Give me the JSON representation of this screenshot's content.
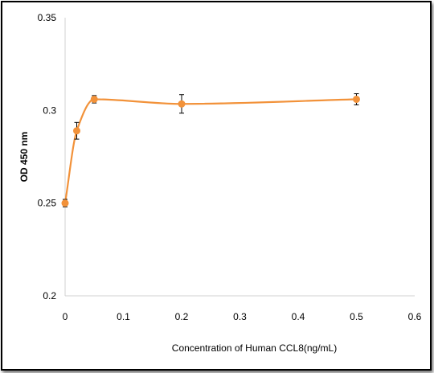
{
  "chart_data": {
    "type": "scatter",
    "xlabel": "Concentration of Human CCL8(ng/mL)",
    "ylabel": "OD 450 nm",
    "xlim": [
      0,
      0.6
    ],
    "ylim": [
      0.2,
      0.35
    ],
    "x_ticks": [
      0,
      0.1,
      0.2,
      0.3,
      0.4,
      0.5,
      0.6
    ],
    "x_tick_labels": [
      "0",
      "0.1",
      "0.2",
      "0.3",
      "0.4",
      "0.5",
      "0.6"
    ],
    "y_ticks": [
      0.2,
      0.25,
      0.3,
      0.35
    ],
    "y_tick_labels": [
      "0.2",
      "0.25",
      "0.3",
      "0.35"
    ],
    "grid": false,
    "smoothed_line": true,
    "series": [
      {
        "color": "#F2923A",
        "x": [
          0,
          0.02,
          0.05,
          0.2,
          0.5
        ],
        "y": [
          0.25,
          0.289,
          0.306,
          0.3035,
          0.306
        ],
        "error": [
          0.002,
          0.0045,
          0.002,
          0.005,
          0.003
        ]
      }
    ]
  }
}
